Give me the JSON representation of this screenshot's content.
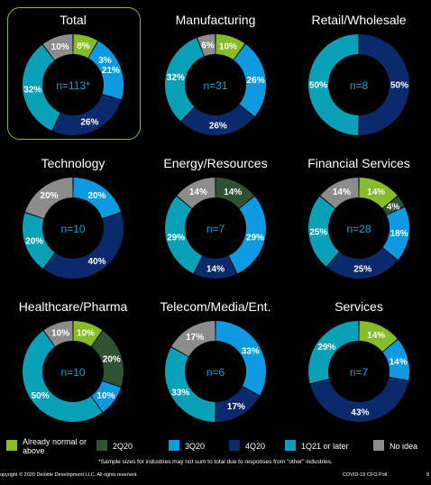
{
  "colors": {
    "already_normal": "#86bc25",
    "q2_20": "#2f5233",
    "q3_20": "#0d9ae0",
    "q4_20": "#0b2a6b",
    "q1_21_later": "#0aa0b8",
    "no_idea": "#8c8c8c"
  },
  "legend": [
    {
      "label": "Already normal or above",
      "color_key": "already_normal"
    },
    {
      "label": "2Q20",
      "color_key": "q2_20"
    },
    {
      "label": "3Q20",
      "color_key": "q3_20"
    },
    {
      "label": "4Q20",
      "color_key": "q4_20"
    },
    {
      "label": "1Q21 or later",
      "color_key": "q1_21_later"
    },
    {
      "label": "No idea",
      "color_key": "no_idea"
    }
  ],
  "chart_data": [
    {
      "type": "pie",
      "title": "Total",
      "center_label": "n=113*",
      "values": [
        8,
        0,
        21,
        26,
        32,
        10
      ],
      "labels": [
        "8%",
        "",
        "21%",
        "26%",
        "32%",
        "10%"
      ],
      "extra_label": "3%"
    },
    {
      "type": "pie",
      "title": "Manufacturing",
      "center_label": "n=31",
      "values": [
        10,
        0,
        26,
        26,
        32,
        6
      ],
      "labels": [
        "10%",
        "",
        "26%",
        "26%",
        "32%",
        "6%"
      ]
    },
    {
      "type": "pie",
      "title": "Retail/Wholesale",
      "center_label": "n=8",
      "values": [
        0,
        0,
        0,
        50,
        50,
        0
      ],
      "labels": [
        "",
        "",
        "",
        "50%",
        "50%",
        ""
      ]
    },
    {
      "type": "pie",
      "title": "Technology",
      "center_label": "n=10",
      "values": [
        0,
        0,
        20,
        40,
        20,
        20
      ],
      "labels": [
        "",
        "",
        "20%",
        "40%",
        "20%",
        "20%"
      ]
    },
    {
      "type": "pie",
      "title": "Energy/Resources",
      "center_label": "n=7",
      "values": [
        0,
        14,
        29,
        14,
        29,
        14
      ],
      "labels": [
        "",
        "14%",
        "29%",
        "14%",
        "29%",
        "14%"
      ]
    },
    {
      "type": "pie",
      "title": "Financial Services",
      "center_label": "n=28",
      "values": [
        14,
        4,
        18,
        25,
        25,
        14
      ],
      "labels": [
        "14%",
        "4%",
        "18%",
        "25%",
        "25%",
        "14%"
      ]
    },
    {
      "type": "pie",
      "title": "Healthcare/Pharma",
      "center_label": "n=10",
      "values": [
        10,
        20,
        10,
        0,
        50,
        10
      ],
      "labels": [
        "10%",
        "20%",
        "10%",
        "",
        "50%",
        "10%"
      ]
    },
    {
      "type": "pie",
      "title": "Telecom/Media/Ent.",
      "center_label": "n=6",
      "values": [
        0,
        0,
        33,
        17,
        33,
        17
      ],
      "labels": [
        "",
        "",
        "33%",
        "17%",
        "33%",
        "17%"
      ]
    },
    {
      "type": "pie",
      "title": "Services",
      "center_label": "n=7",
      "values": [
        14,
        0,
        14,
        43,
        29,
        0
      ],
      "labels": [
        "14%",
        "",
        "14%",
        "43%",
        "29%",
        ""
      ]
    }
  ],
  "footnote": "*Sample sizes for industries may not sum to total due to responses from \"other\" industries.",
  "footer": {
    "copyright": "opyright © 2020 Deloitte Development LLC. All rights reserved.",
    "poll": "COVID-19 CFO Poll",
    "page": "8"
  }
}
